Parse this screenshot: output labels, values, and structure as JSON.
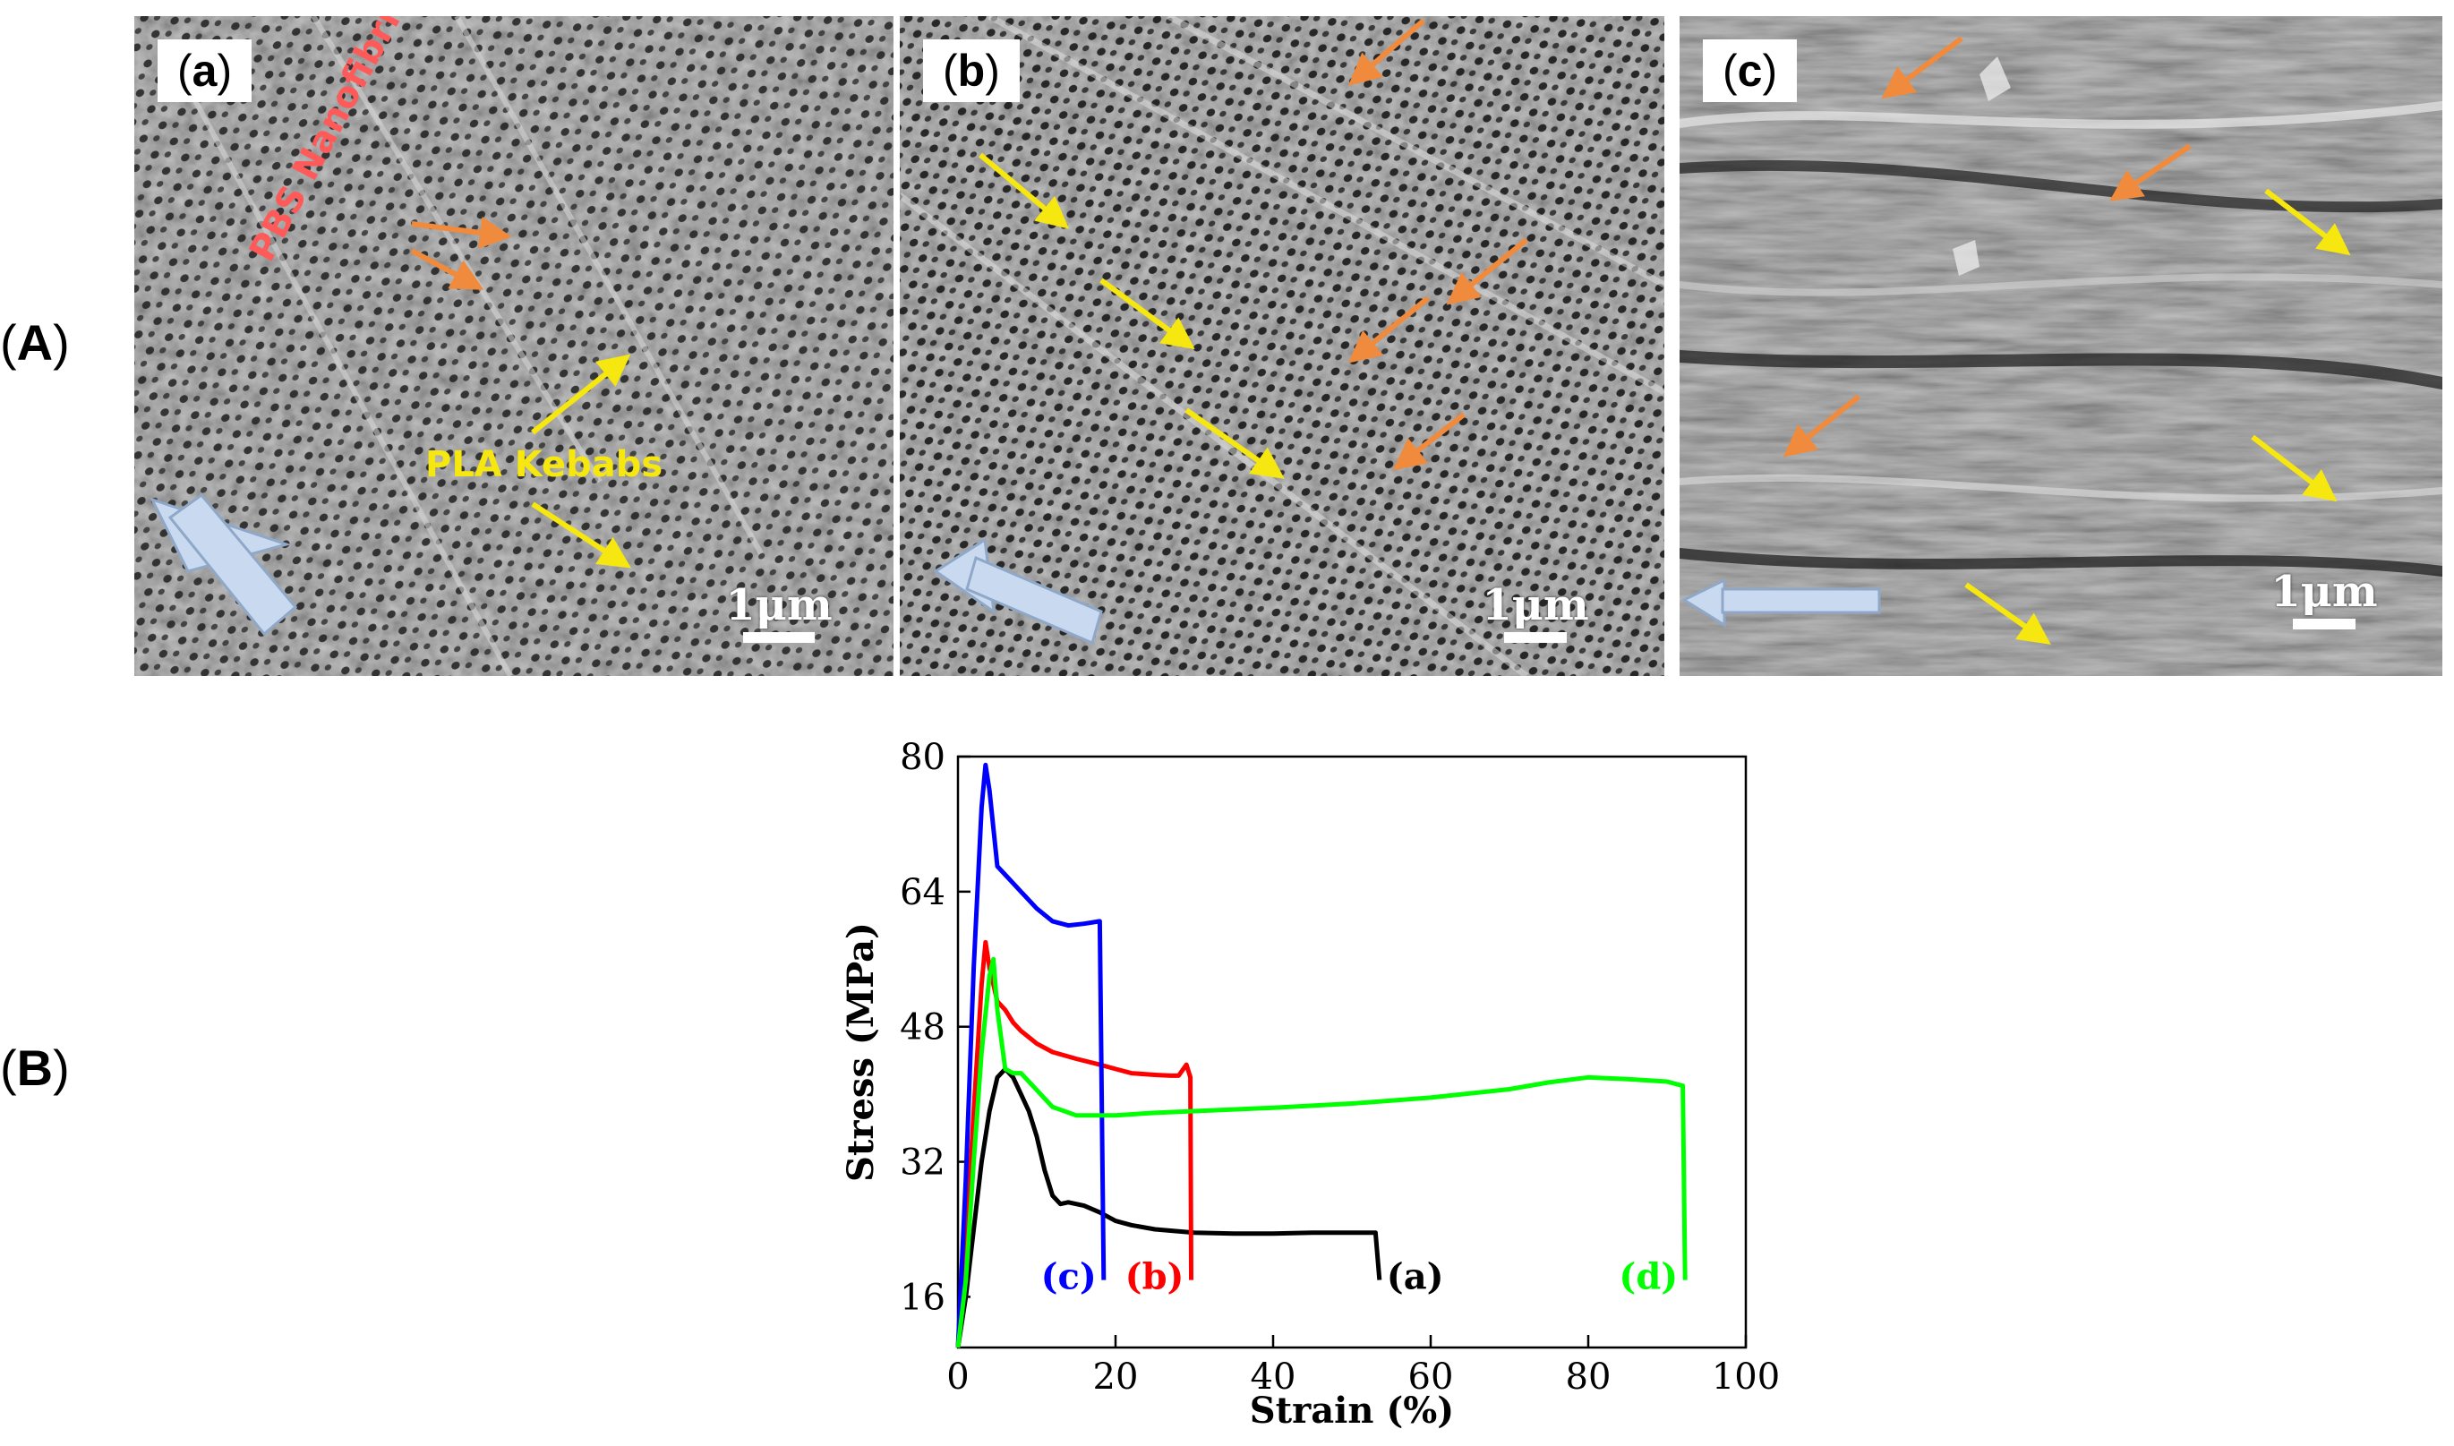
{
  "figure": {
    "row_label_A": "A",
    "row_label_B": "B",
    "panels": [
      {
        "tag": "a",
        "scale": "1μm"
      },
      {
        "tag": "b",
        "scale": "1μm"
      },
      {
        "tag": "c",
        "scale": "1μm"
      }
    ],
    "annotations": {
      "nanofibrils": "PBS Nanofibrils",
      "kebabs": "PLA Kebabs"
    },
    "colors": {
      "orange_arrow": "#f08a3c",
      "yellow_arrow": "#f5e70f",
      "flow_arrow": "#c9daf0"
    }
  },
  "chart_data": {
    "type": "line",
    "xlabel": "Strain (%)",
    "ylabel": "Stress (MPa)",
    "xlim": [
      0,
      100
    ],
    "ylim": [
      10,
      80
    ],
    "xticks": [
      0,
      20,
      40,
      60,
      80,
      100
    ],
    "yticks": [
      16,
      32,
      48,
      64,
      80
    ],
    "series": [
      {
        "name": "(a)",
        "color": "#000000",
        "x": [
          0,
          1,
          2,
          3,
          4,
          5,
          6,
          7,
          8,
          9,
          10,
          11,
          12,
          13,
          14,
          16,
          18,
          20,
          22,
          25,
          30,
          35,
          40,
          45,
          50,
          53,
          53.5
        ],
        "y": [
          10,
          16,
          24,
          32,
          38,
          42,
          43,
          42,
          40,
          38,
          35,
          31,
          28,
          27,
          27.2,
          26.8,
          26,
          25,
          24.5,
          24,
          23.6,
          23.5,
          23.5,
          23.6,
          23.6,
          23.6,
          18
        ]
      },
      {
        "name": "(b)",
        "color": "#ff0000",
        "x": [
          0,
          1,
          2,
          3,
          3.5,
          4,
          5,
          6,
          7,
          8,
          10,
          12,
          15,
          18,
          20,
          22,
          25,
          27,
          28,
          29,
          29.5,
          29.6
        ],
        "y": [
          10,
          22,
          38,
          53,
          58,
          55,
          51,
          50,
          48.5,
          47.5,
          46,
          45,
          44.2,
          43.5,
          43,
          42.5,
          42.3,
          42.2,
          42.2,
          43.5,
          42,
          18
        ]
      },
      {
        "name": "(c)",
        "color": "#0000ff",
        "x": [
          0,
          1,
          2,
          3,
          3.5,
          4,
          5,
          6,
          7,
          8,
          10,
          12,
          14,
          16,
          18,
          18.5
        ],
        "y": [
          10,
          30,
          55,
          74,
          79,
          76,
          67,
          66,
          65,
          64,
          62,
          60.5,
          60,
          60.2,
          60.5,
          18
        ]
      },
      {
        "name": "(d)",
        "color": "#00ff00",
        "x": [
          0,
          1,
          2,
          3,
          4,
          4.5,
          5,
          6,
          7,
          8,
          10,
          12,
          15,
          20,
          25,
          30,
          40,
          50,
          60,
          70,
          75,
          80,
          85,
          90,
          92,
          92.3
        ],
        "y": [
          10,
          18,
          32,
          45,
          54,
          56,
          50,
          43,
          42.5,
          42.5,
          40.5,
          38.5,
          37.5,
          37.5,
          37.8,
          38,
          38.4,
          38.9,
          39.6,
          40.6,
          41.4,
          42,
          41.8,
          41.5,
          41,
          18
        ]
      }
    ]
  }
}
